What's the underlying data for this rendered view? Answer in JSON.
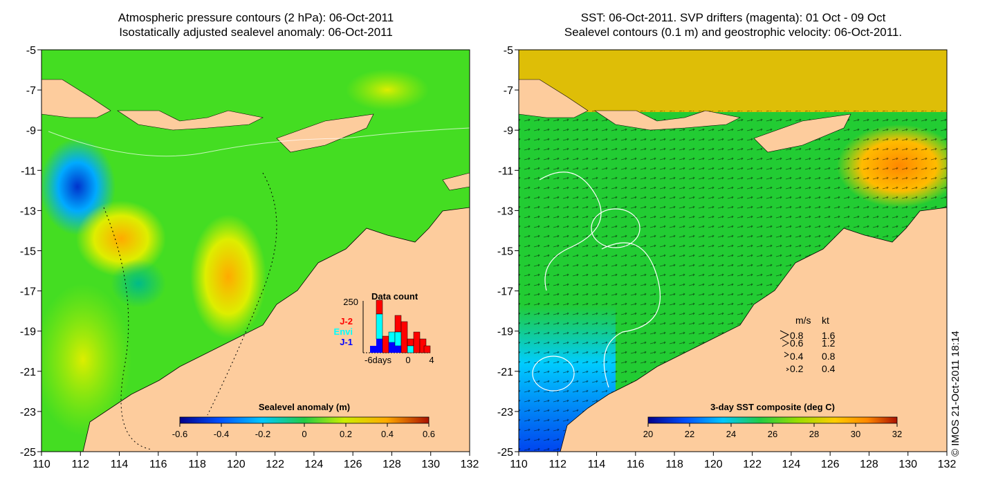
{
  "left_panel": {
    "title_line1": "Atmospheric pressure contours (2 hPa): 06-Oct-2011",
    "title_line2": "Isostatically adjusted sealevel anomaly: 06-Oct-2011",
    "colorbar": {
      "title": "Sealevel anomaly (m)",
      "ticks": [
        "-0.6",
        "-0.4",
        "-0.2",
        "0",
        "0.2",
        "0.4",
        "0.6"
      ]
    },
    "histogram": {
      "title": "Data count",
      "ymax_label": "250",
      "x_labels": [
        "-6days",
        "0",
        "4"
      ],
      "series_labels": [
        {
          "name": "J-2",
          "color": "#ff0000"
        },
        {
          "name": "Envi",
          "color": "#00ffff"
        },
        {
          "name": "J-1",
          "color": "#0000ff"
        }
      ]
    }
  },
  "right_panel": {
    "title_line1": "SST: 06-Oct-2011. SVP drifters (magenta): 01 Oct - 09 Oct",
    "title_line2": "Sealevel contours (0.1 m) and geostrophic velocity: 06-Oct-2011.",
    "colorbar": {
      "title": "3-day SST composite (deg C)",
      "ticks": [
        "20",
        "22",
        "24",
        "26",
        "28",
        "30",
        "32"
      ]
    },
    "velocity_legend": {
      "header_ms": "m/s",
      "header_kt": "kt",
      "rows": [
        {
          "ms": "0.8",
          "kt": "1.6"
        },
        {
          "ms": "0.6",
          "kt": "1.2"
        },
        {
          "ms": "0.4",
          "kt": "0.8"
        },
        {
          "ms": "0.2",
          "kt": "0.4"
        }
      ]
    }
  },
  "axes": {
    "x_ticks": [
      "110",
      "112",
      "114",
      "116",
      "118",
      "120",
      "122",
      "124",
      "126",
      "128",
      "130",
      "132"
    ],
    "y_ticks": [
      "-5",
      "-7",
      "-9",
      "-11",
      "-13",
      "-15",
      "-17",
      "-19",
      "-21",
      "-23",
      "-25"
    ]
  },
  "copyright": "© IMOS 21-Oct-2011 18:14",
  "colors": {
    "land": "#fdcc9d",
    "ocean_left": "#44dd22",
    "ocean_right": "#22cc33"
  }
}
